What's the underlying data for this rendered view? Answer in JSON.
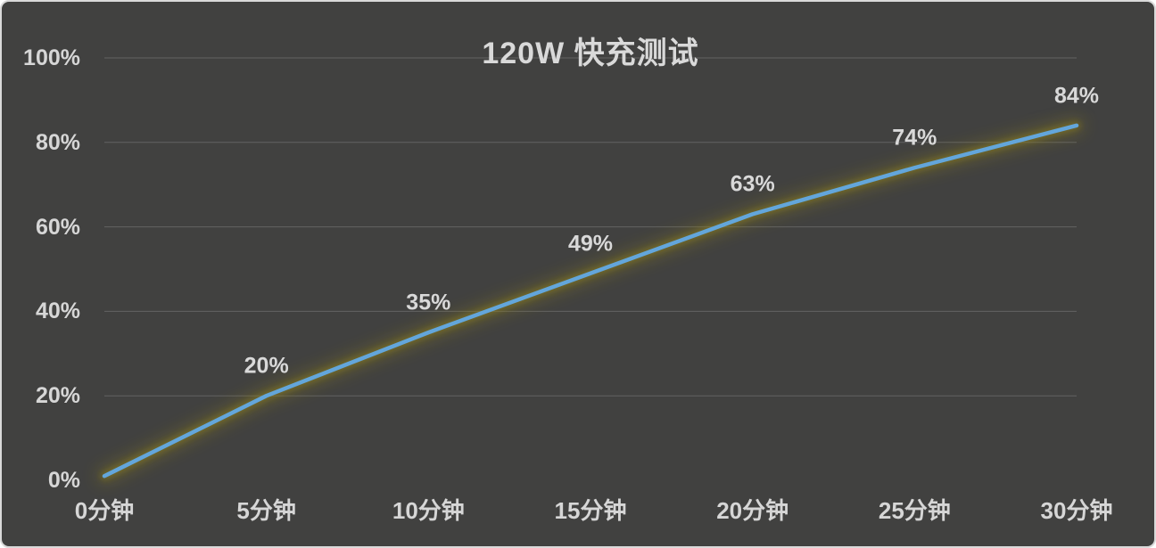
{
  "chart_data": {
    "type": "line",
    "title": "120W 快充测试",
    "categories": [
      "0分钟",
      "5分钟",
      "10分钟",
      "15分钟",
      "20分钟",
      "25分钟",
      "30分钟"
    ],
    "values": [
      1,
      20,
      35,
      49,
      63,
      74,
      84
    ],
    "point_labels": [
      "",
      "20%",
      "35%",
      "49%",
      "63%",
      "74%",
      "84%"
    ],
    "y_ticks": [
      {
        "label": "100%",
        "value": 100
      },
      {
        "label": "80%",
        "value": 80
      },
      {
        "label": "60%",
        "value": 60
      },
      {
        "label": "40%",
        "value": 40
      },
      {
        "label": "20%",
        "value": 20
      },
      {
        "label": "0%",
        "value": 0
      }
    ],
    "xlabel": "",
    "ylabel": "",
    "ylim": [
      0,
      100
    ],
    "grid": "horizontal",
    "legend": "none",
    "colors": {
      "line": "#63a6db",
      "glow": "#8a7d1e",
      "background": "#414140",
      "gridline": "rgba(217,217,217,0.22)",
      "text": "#d6d6d6",
      "frame_border": "#d9d9d9"
    }
  }
}
